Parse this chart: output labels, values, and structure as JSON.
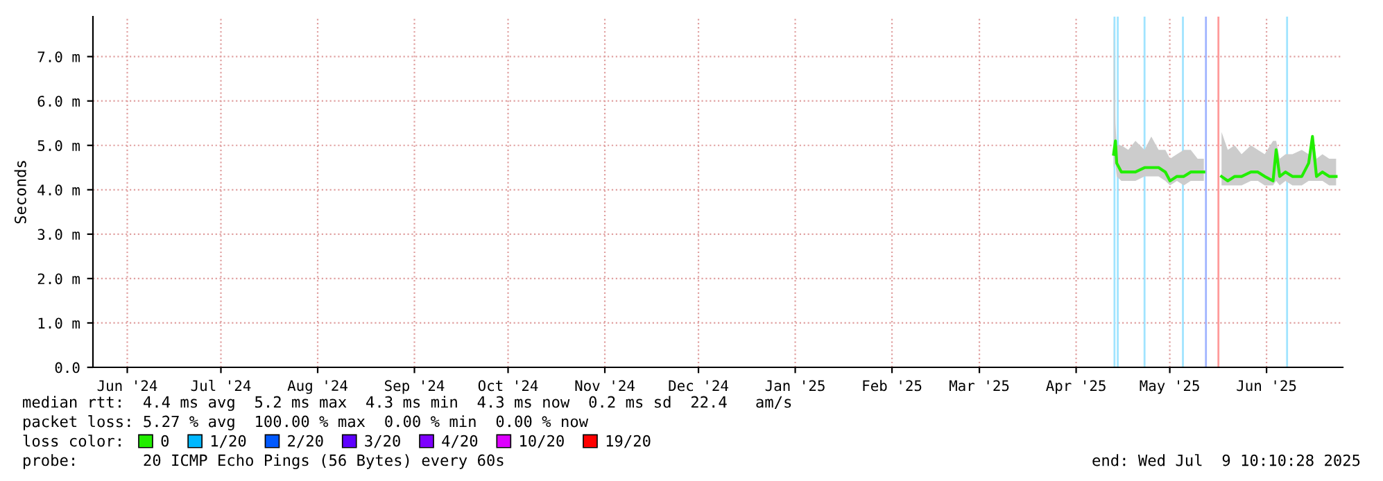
{
  "chart_data": {
    "type": "line",
    "ylabel": "Seconds",
    "xlim": [
      "2024-06-04",
      "2025-07-09T10:10"
    ],
    "xticks": [
      {
        "value": "2024-06-15",
        "label": "Jun '24"
      },
      {
        "value": "2024-07-15",
        "label": "Jul '24"
      },
      {
        "value": "2024-08-15",
        "label": "Aug '24"
      },
      {
        "value": "2024-09-15",
        "label": "Sep '24"
      },
      {
        "value": "2024-10-15",
        "label": "Oct '24"
      },
      {
        "value": "2024-11-15",
        "label": "Nov '24"
      },
      {
        "value": "2024-12-15",
        "label": "Dec '24"
      },
      {
        "value": "2025-01-15",
        "label": "Jan '25"
      },
      {
        "value": "2025-02-15",
        "label": "Feb '25"
      },
      {
        "value": "2025-03-15",
        "label": "Mar '25"
      },
      {
        "value": "2025-04-15",
        "label": "Apr '25"
      },
      {
        "value": "2025-05-15",
        "label": "May '25"
      },
      {
        "value": "2025-06-15",
        "label": "Jun '25"
      }
    ],
    "ylim": [
      0,
      7.9
    ],
    "yticks": [
      {
        "value": 0,
        "label": "0.0"
      },
      {
        "value": 1,
        "label": "1.0 m"
      },
      {
        "value": 2,
        "label": "2.0 m"
      },
      {
        "value": 3,
        "label": "3.0 m"
      },
      {
        "value": 4,
        "label": "4.0 m"
      },
      {
        "value": 5,
        "label": "5.0 m"
      },
      {
        "value": 6,
        "label": "6.0 m"
      },
      {
        "value": 7,
        "label": "7.0 m"
      }
    ],
    "grid": true,
    "legend": "bottom",
    "legend_title": "loss color:",
    "series": [
      {
        "name": "0",
        "color": "#22ee00",
        "x": [
          "2025-04-27",
          "2025-04-27T14:00",
          "2025-04-28",
          "2025-04-29T12:00",
          "2025-05-01T17:00",
          "2025-05-04",
          "2025-05-06T22:00",
          "2025-05-09T02:00",
          "2025-05-11T10:00",
          "2025-05-13T14:00",
          "2025-05-15T02:00",
          "2025-05-17T07:00",
          "2025-05-19T12:00",
          "2025-05-21T17:00",
          "2025-05-23T22:00",
          "2025-05-25T22:00",
          "2025-05-28",
          "2025-05-31T14:00",
          "2025-06-02T14:00",
          "2025-06-04T19:00",
          "2025-06-07",
          "2025-06-10",
          "2025-06-12T05:00",
          "2025-06-14T10:00",
          "2025-06-17T02:00",
          "2025-06-18T02:00",
          "2025-06-19T05:00",
          "2025-06-21T02:00",
          "2025-06-23T07:00",
          "2025-06-26T07:00",
          "2025-06-28T12:00",
          "2025-06-29T17:00",
          "2025-07-01",
          "2025-07-02T22:00",
          "2025-07-05T02:00",
          "2025-07-07T07:00"
        ],
        "values": [
          4.8,
          5.1,
          4.6,
          4.4,
          4.4,
          4.4,
          4.5,
          4.5,
          4.5,
          4.4,
          4.2,
          4.3,
          4.3,
          4.4,
          4.4,
          4.4,
          null,
          4.3,
          4.2,
          4.3,
          4.3,
          4.4,
          4.4,
          4.3,
          4.2,
          4.9,
          4.3,
          4.4,
          4.3,
          4.3,
          4.6,
          5.2,
          4.3,
          4.4,
          4.3,
          4.3
        ],
        "lower": [
          4.5,
          4.6,
          4.3,
          4.2,
          4.2,
          4.2,
          4.3,
          4.3,
          4.3,
          4.2,
          4.1,
          4.2,
          4.1,
          4.2,
          4.2,
          4.2,
          null,
          4.1,
          4.1,
          4.1,
          4.1,
          4.2,
          4.2,
          4.1,
          4.1,
          4.2,
          4.1,
          4.2,
          4.1,
          4.1,
          4.2,
          4.2,
          4.2,
          4.2,
          4.1,
          4.1
        ],
        "upper": [
          7.9,
          5.5,
          5.0,
          5.0,
          4.9,
          5.1,
          4.9,
          5.2,
          4.9,
          4.9,
          4.7,
          4.8,
          4.9,
          4.9,
          4.7,
          4.7,
          null,
          5.3,
          4.9,
          5.0,
          4.8,
          5.0,
          4.9,
          4.8,
          5.1,
          5.1,
          4.7,
          4.8,
          4.8,
          4.9,
          4.8,
          5.2,
          4.7,
          4.8,
          4.7,
          4.7
        ]
      },
      {
        "name": "1/20",
        "color": "#00b8ff"
      },
      {
        "name": "2/20",
        "color": "#0059ff"
      },
      {
        "name": "3/20",
        "color": "#5e00ff"
      },
      {
        "name": "4/20",
        "color": "#7e00ff"
      },
      {
        "name": "10/20",
        "color": "#dd00ff"
      },
      {
        "name": "19/20",
        "color": "#ff0000"
      }
    ],
    "ref_lines": [
      {
        "axis": "x",
        "value": "2025-04-27T07:00",
        "label": null,
        "color": "#a0e4ff"
      },
      {
        "axis": "x",
        "value": "2025-04-28T08:00",
        "label": null,
        "color": "#a0e4ff"
      },
      {
        "axis": "x",
        "value": "2025-05-06T22:00",
        "label": null,
        "color": "#a0e4ff"
      },
      {
        "axis": "x",
        "value": "2025-05-19T05:00",
        "label": null,
        "color": "#a0e4ff"
      },
      {
        "axis": "x",
        "value": "2025-05-26T14:00",
        "label": null,
        "color": "#a0b4ff"
      },
      {
        "axis": "x",
        "value": "2025-05-30T14:00",
        "label": null,
        "color": "#ff9a9a"
      },
      {
        "axis": "x",
        "value": "2025-06-21T14:00",
        "label": null,
        "color": "#a0e4ff"
      }
    ],
    "annotations": [
      "median rtt:  4.4 ms avg  5.2 ms max  4.3 ms min  4.3 ms now  0.2 ms sd  22.4   am/s",
      "packet loss: 5.27 % avg  100.00 % max  0.00 % min  0.00 % now",
      "probe:       20 ICMP Echo Pings (56 Bytes) every 60s",
      "end: Wed Jul  9 10:10:28 2025"
    ]
  }
}
